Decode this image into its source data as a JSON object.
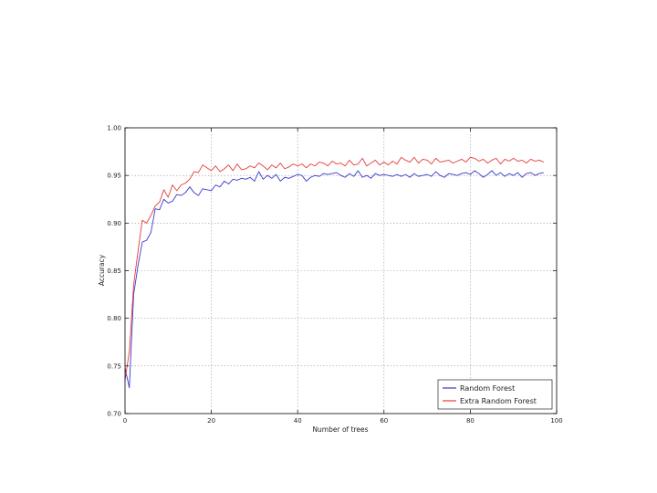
{
  "chart_data": {
    "type": "line",
    "title": "",
    "xlabel": "Number of trees",
    "ylabel": "Accuracy",
    "xlim": [
      0,
      100
    ],
    "ylim": [
      0.7,
      1.0
    ],
    "x_ticks": [
      0,
      20,
      40,
      60,
      80,
      100
    ],
    "x_tick_labels": [
      "0",
      "20",
      "40",
      "60",
      "80",
      "100"
    ],
    "y_ticks": [
      0.7,
      0.75,
      0.8,
      0.85,
      0.9,
      0.95,
      1.0
    ],
    "y_tick_labels": [
      "0.70",
      "0.75",
      "0.80",
      "0.85",
      "0.90",
      "0.95",
      "1.00"
    ],
    "grid": true,
    "legend_position": "lower-right",
    "x": [
      0,
      1,
      2,
      3,
      4,
      5,
      6,
      7,
      8,
      9,
      10,
      11,
      12,
      13,
      14,
      15,
      16,
      17,
      18,
      19,
      20,
      21,
      22,
      23,
      24,
      25,
      26,
      27,
      28,
      29,
      30,
      31,
      32,
      33,
      34,
      35,
      36,
      37,
      38,
      39,
      40,
      41,
      42,
      43,
      44,
      45,
      46,
      47,
      48,
      49,
      50,
      51,
      52,
      53,
      54,
      55,
      56,
      57,
      58,
      59,
      60,
      61,
      62,
      63,
      64,
      65,
      66,
      67,
      68,
      69,
      70,
      71,
      72,
      73,
      74,
      75,
      76,
      77,
      78,
      79,
      80,
      81,
      82,
      83,
      84,
      85,
      86,
      87,
      88,
      89,
      90,
      91,
      92,
      93,
      94,
      95,
      96,
      97
    ],
    "series": [
      {
        "name": "Random Forest",
        "color": "#3a3acc",
        "values": [
          0.748,
          0.727,
          0.825,
          0.855,
          0.88,
          0.882,
          0.89,
          0.915,
          0.914,
          0.925,
          0.921,
          0.923,
          0.93,
          0.929,
          0.932,
          0.938,
          0.932,
          0.929,
          0.936,
          0.935,
          0.934,
          0.94,
          0.938,
          0.944,
          0.941,
          0.946,
          0.945,
          0.947,
          0.946,
          0.948,
          0.944,
          0.954,
          0.946,
          0.95,
          0.947,
          0.951,
          0.944,
          0.948,
          0.947,
          0.949,
          0.951,
          0.95,
          0.944,
          0.948,
          0.95,
          0.949,
          0.952,
          0.951,
          0.952,
          0.953,
          0.95,
          0.948,
          0.952,
          0.949,
          0.955,
          0.948,
          0.95,
          0.947,
          0.952,
          0.95,
          0.951,
          0.95,
          0.949,
          0.951,
          0.949,
          0.951,
          0.948,
          0.952,
          0.949,
          0.95,
          0.951,
          0.949,
          0.954,
          0.95,
          0.948,
          0.952,
          0.951,
          0.95,
          0.952,
          0.953,
          0.951,
          0.955,
          0.952,
          0.948,
          0.951,
          0.955,
          0.95,
          0.953,
          0.949,
          0.952,
          0.95,
          0.953,
          0.948,
          0.952,
          0.953,
          0.95,
          0.952,
          0.953
        ]
      },
      {
        "name": "Extra Random Forest",
        "color": "#e83a3a",
        "values": [
          0.735,
          0.765,
          0.835,
          0.87,
          0.903,
          0.9,
          0.908,
          0.918,
          0.922,
          0.935,
          0.927,
          0.94,
          0.934,
          0.94,
          0.942,
          0.946,
          0.954,
          0.953,
          0.961,
          0.958,
          0.955,
          0.96,
          0.954,
          0.957,
          0.961,
          0.955,
          0.962,
          0.956,
          0.957,
          0.96,
          0.958,
          0.963,
          0.96,
          0.956,
          0.961,
          0.958,
          0.963,
          0.957,
          0.959,
          0.962,
          0.96,
          0.962,
          0.958,
          0.962,
          0.96,
          0.964,
          0.963,
          0.96,
          0.965,
          0.962,
          0.963,
          0.96,
          0.966,
          0.961,
          0.962,
          0.968,
          0.96,
          0.963,
          0.966,
          0.961,
          0.964,
          0.961,
          0.965,
          0.962,
          0.969,
          0.966,
          0.964,
          0.969,
          0.963,
          0.967,
          0.966,
          0.962,
          0.968,
          0.964,
          0.965,
          0.966,
          0.963,
          0.965,
          0.967,
          0.964,
          0.969,
          0.968,
          0.965,
          0.967,
          0.963,
          0.966,
          0.968,
          0.962,
          0.967,
          0.965,
          0.968,
          0.965,
          0.966,
          0.963,
          0.967,
          0.965,
          0.966,
          0.964
        ]
      }
    ]
  }
}
